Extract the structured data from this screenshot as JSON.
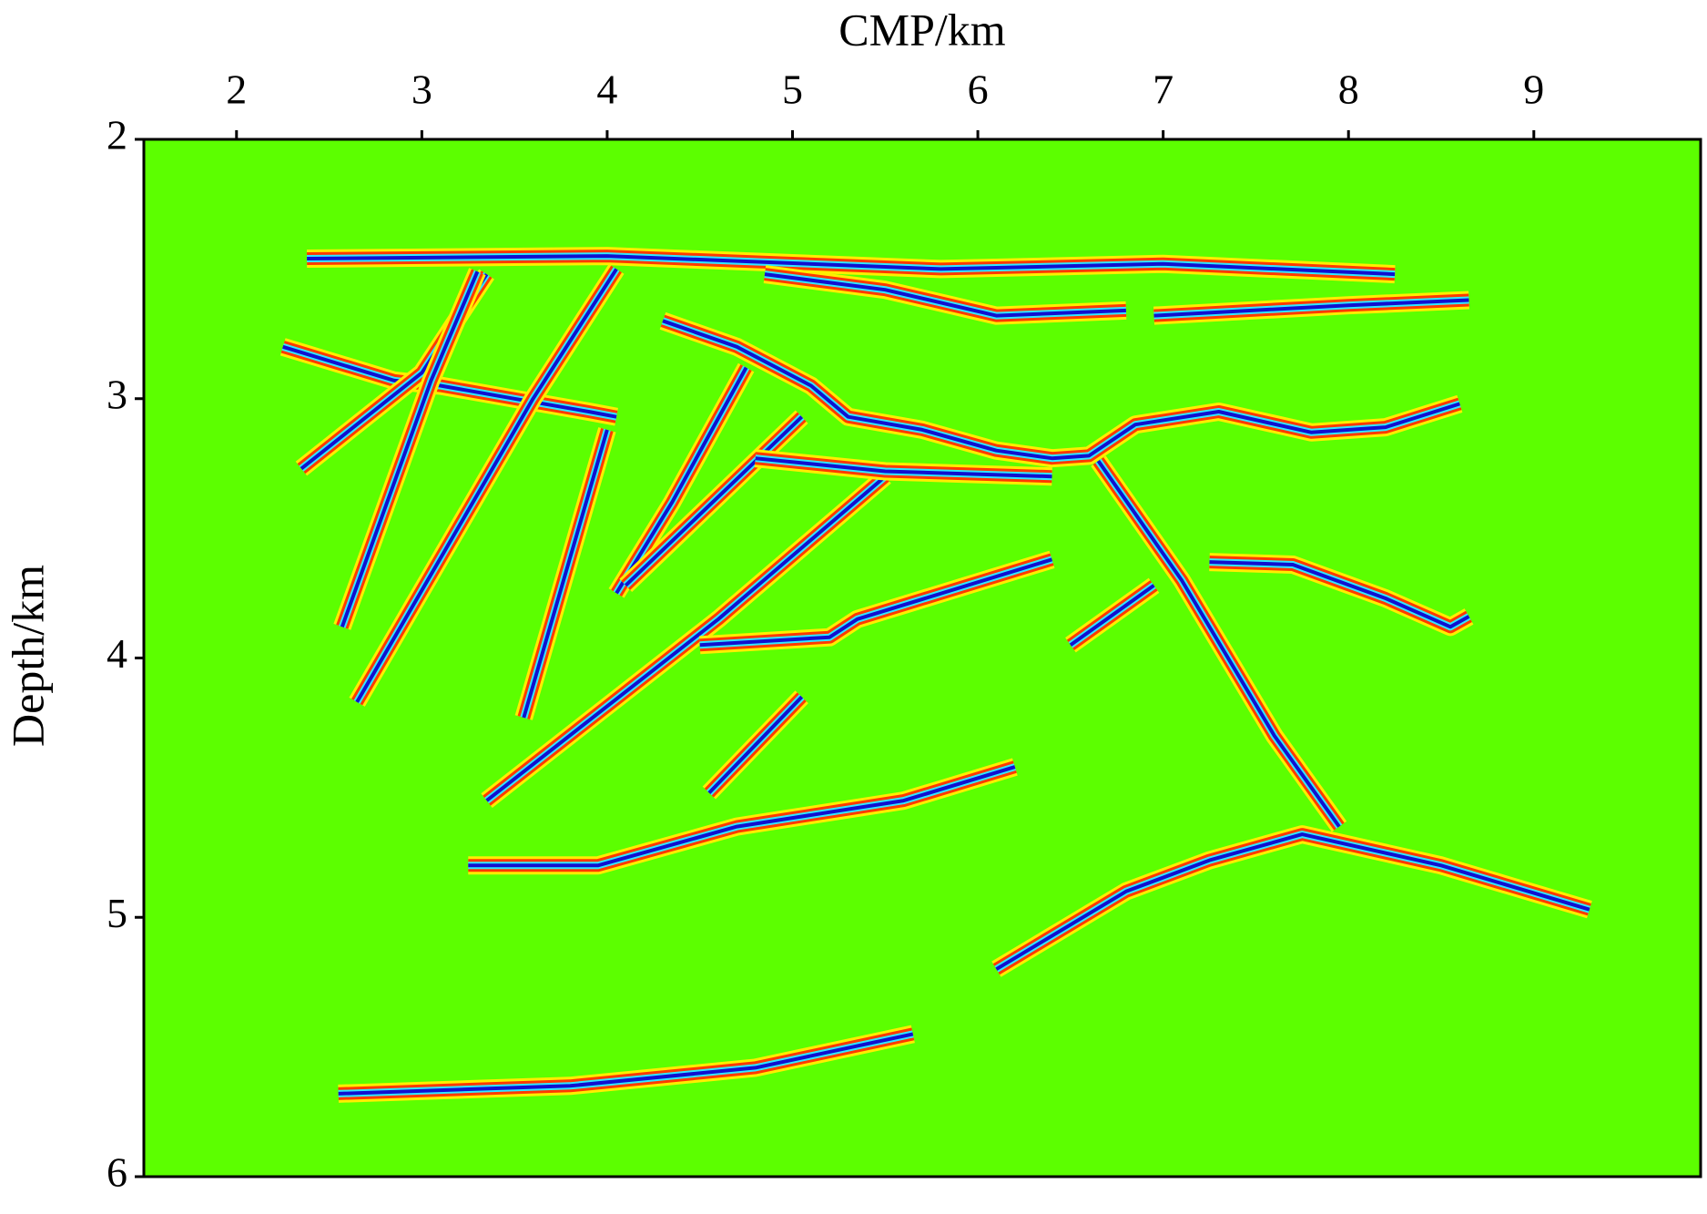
{
  "chart_data": {
    "type": "seismic",
    "x_label": "CMP/km",
    "y_label": "Depth/km",
    "xlim": [
      1.5,
      9.9
    ],
    "ylim": [
      2,
      6
    ],
    "xticks": [
      2,
      3,
      4,
      5,
      6,
      7,
      8,
      9
    ],
    "yticks": [
      2,
      3,
      4,
      5,
      6
    ],
    "y_inverted": true,
    "x_axis_position": "top",
    "background_color": "#5cff00",
    "wavelet_colors": [
      "#ffee00",
      "#ff3a00",
      "#30e8ff",
      "#1010d0"
    ],
    "series": [
      {
        "x": [
          2.38,
          4.0,
          5.8,
          7.0,
          8.25
        ],
        "values": [
          2.46,
          2.45,
          2.5,
          2.48,
          2.52
        ]
      },
      {
        "x": [
          4.85,
          5.5,
          6.1,
          6.8
        ],
        "values": [
          2.52,
          2.58,
          2.68,
          2.66
        ]
      },
      {
        "x": [
          6.95,
          8.0,
          8.65
        ],
        "values": [
          2.68,
          2.64,
          2.62
        ]
      },
      {
        "x": [
          2.25,
          2.85,
          3.1,
          3.5,
          3.9,
          4.05
        ],
        "values": [
          2.8,
          2.93,
          2.95,
          3.0,
          3.05,
          3.07
        ]
      },
      {
        "x": [
          4.3,
          4.7,
          5.1,
          5.3,
          5.7,
          6.1,
          6.4,
          6.6,
          6.85,
          7.3,
          7.8,
          8.2,
          8.6
        ],
        "values": [
          2.7,
          2.8,
          2.95,
          3.07,
          3.12,
          3.2,
          3.23,
          3.22,
          3.1,
          3.05,
          3.13,
          3.11,
          3.02
        ]
      },
      {
        "x": [
          3.35,
          3.0,
          2.35
        ],
        "values": [
          2.52,
          2.9,
          3.27
        ]
      },
      {
        "x": [
          3.3,
          3.05,
          2.57
        ],
        "values": [
          2.51,
          2.93,
          3.88
        ]
      },
      {
        "x": [
          4.05,
          3.6,
          2.65
        ],
        "values": [
          2.5,
          3.0,
          4.17
        ]
      },
      {
        "x": [
          4.0,
          3.55
        ],
        "values": [
          3.12,
          4.23
        ]
      },
      {
        "x": [
          4.75,
          4.35,
          4.05
        ],
        "values": [
          2.88,
          3.4,
          3.75
        ]
      },
      {
        "x": [
          5.05,
          4.1
        ],
        "values": [
          3.07,
          3.72
        ]
      },
      {
        "x": [
          5.5,
          4.6,
          3.35
        ],
        "values": [
          3.3,
          3.85,
          4.55
        ]
      },
      {
        "x": [
          4.8,
          5.5,
          6.4
        ],
        "values": [
          3.23,
          3.28,
          3.3
        ]
      },
      {
        "x": [
          4.5,
          5.2,
          5.35,
          6.4
        ],
        "values": [
          3.95,
          3.92,
          3.85,
          3.62
        ]
      },
      {
        "x": [
          5.05,
          4.55
        ],
        "values": [
          4.15,
          4.52
        ]
      },
      {
        "x": [
          6.5,
          6.95
        ],
        "values": [
          3.95,
          3.72
        ]
      },
      {
        "x": [
          6.65,
          7.1,
          7.6,
          7.95
        ],
        "values": [
          3.24,
          3.7,
          4.3,
          4.65
        ]
      },
      {
        "x": [
          7.25,
          7.7,
          8.2,
          8.55,
          8.65
        ],
        "values": [
          3.63,
          3.64,
          3.77,
          3.88,
          3.84
        ]
      },
      {
        "x": [
          3.25,
          3.95,
          4.7,
          5.6,
          6.2
        ],
        "values": [
          4.8,
          4.8,
          4.65,
          4.55,
          4.42
        ]
      },
      {
        "x": [
          6.1,
          6.8,
          7.25,
          7.75,
          8.5,
          9.3
        ],
        "values": [
          5.2,
          4.9,
          4.78,
          4.68,
          4.8,
          4.97
        ]
      },
      {
        "x": [
          2.55,
          3.8,
          4.8,
          5.65
        ],
        "values": [
          5.68,
          5.65,
          5.58,
          5.45
        ]
      }
    ]
  }
}
